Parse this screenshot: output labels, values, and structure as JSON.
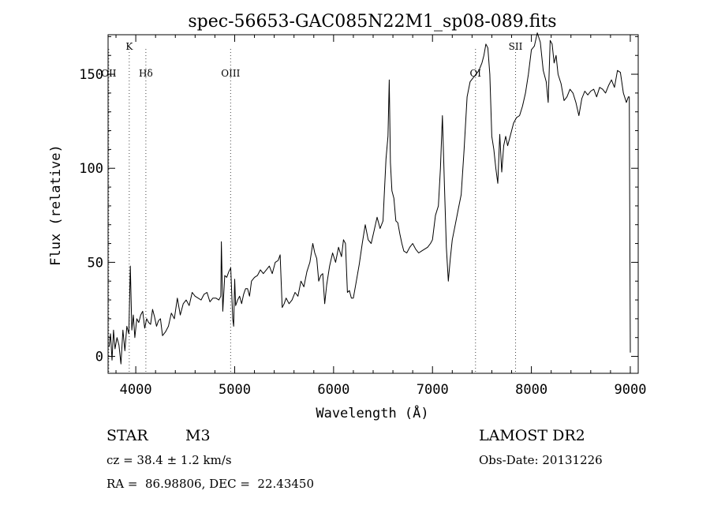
{
  "chart_data": {
    "type": "line",
    "title": "spec-56653-GAC085N22M1_sp08-089.fits",
    "xlabel": "Wavelength (Å)",
    "ylabel": "Flux (relative)",
    "xlim": [
      3720,
      9080
    ],
    "ylim": [
      -9,
      171
    ],
    "xticks": [
      4000,
      5000,
      6000,
      7000,
      8000,
      9000
    ],
    "yticks": [
      0,
      50,
      100,
      150
    ],
    "grid": false,
    "lines": [
      {
        "label": "K",
        "x": 3934,
        "label_row": "upper"
      },
      {
        "label": "OII",
        "x": 3727,
        "label_row": "lower"
      },
      {
        "label": "Hδ",
        "x": 4102,
        "label_row": "lower"
      },
      {
        "label": "OIII",
        "x": 4959,
        "label_row": "lower"
      },
      {
        "label": "OI",
        "x": 7435,
        "label_row": "lower"
      },
      {
        "label": "SII",
        "x": 7840,
        "label_row": "upper"
      }
    ],
    "series": [
      {
        "x": [
          3730,
          3745,
          3760,
          3775,
          3790,
          3810,
          3830,
          3850,
          3870,
          3890,
          3910,
          3930,
          3945,
          3960,
          3975,
          3990,
          4010,
          4030,
          4050,
          4070,
          4090,
          4110,
          4130,
          4150,
          4170,
          4190,
          4210,
          4230,
          4250,
          4270,
          4300,
          4330,
          4360,
          4390,
          4420,
          4450,
          4480,
          4510,
          4540,
          4570,
          4600,
          4630,
          4660,
          4690,
          4720,
          4750,
          4780,
          4810,
          4840,
          4860,
          4865,
          4880,
          4900,
          4920,
          4940,
          4960,
          4980,
          4990,
          5000,
          5010,
          5030,
          5050,
          5070,
          5090,
          5110,
          5130,
          5150,
          5170,
          5200,
          5230,
          5260,
          5290,
          5320,
          5350,
          5380,
          5410,
          5440,
          5460,
          5480,
          5500,
          5520,
          5550,
          5580,
          5610,
          5640,
          5670,
          5700,
          5730,
          5760,
          5790,
          5810,
          5830,
          5850,
          5870,
          5890,
          5910,
          5930,
          5960,
          5990,
          6020,
          6050,
          6080,
          6100,
          6120,
          6140,
          6160,
          6180,
          6200,
          6230,
          6260,
          6290,
          6320,
          6350,
          6380,
          6410,
          6440,
          6470,
          6500,
          6530,
          6550,
          6563,
          6575,
          6590,
          6610,
          6630,
          6650,
          6670,
          6690,
          6710,
          6740,
          6770,
          6800,
          6830,
          6860,
          6890,
          6920,
          6950,
          6980,
          7000,
          7030,
          7060,
          7080,
          7100,
          7120,
          7140,
          7160,
          7180,
          7200,
          7230,
          7260,
          7290,
          7320,
          7350,
          7380,
          7410,
          7440,
          7470,
          7500,
          7520,
          7540,
          7560,
          7580,
          7600,
          7620,
          7640,
          7660,
          7680,
          7700,
          7720,
          7740,
          7760,
          7790,
          7820,
          7850,
          7880,
          7910,
          7940,
          7970,
          8000,
          8030,
          8060,
          8090,
          8120,
          8150,
          8170,
          8190,
          8210,
          8230,
          8250,
          8270,
          8300,
          8330,
          8360,
          8390,
          8420,
          8450,
          8480,
          8510,
          8540,
          8570,
          8600,
          8630,
          8660,
          8690,
          8720,
          8750,
          8780,
          8810,
          8840,
          8870,
          8900,
          8930,
          8960,
          8980,
          8990,
          9000
        ],
        "y": [
          5,
          12,
          -2,
          14,
          4,
          10,
          6,
          -4,
          14,
          3,
          16,
          12,
          48,
          14,
          22,
          10,
          20,
          18,
          22,
          24,
          15,
          20,
          18,
          17,
          25,
          21,
          16,
          19,
          20,
          11,
          13,
          16,
          23,
          20,
          31,
          22,
          28,
          30,
          27,
          34,
          32,
          31,
          30,
          33,
          34,
          29,
          31,
          31,
          30,
          32,
          61,
          24,
          43,
          42,
          45,
          47,
          20,
          16,
          41,
          27,
          30,
          32,
          28,
          33,
          36,
          36,
          32,
          40,
          42,
          43,
          46,
          44,
          46,
          48,
          44,
          50,
          51,
          54,
          26,
          28,
          31,
          28,
          30,
          34,
          32,
          40,
          37,
          45,
          50,
          60,
          55,
          52,
          40,
          43,
          44,
          28,
          38,
          48,
          55,
          50,
          58,
          53,
          62,
          60,
          34,
          35,
          31,
          31,
          40,
          49,
          60,
          70,
          62,
          60,
          67,
          74,
          68,
          72,
          105,
          117,
          147,
          103,
          88,
          84,
          72,
          71,
          65,
          60,
          56,
          55,
          58,
          60,
          57,
          55,
          56,
          57,
          58,
          60,
          62,
          75,
          80,
          100,
          128,
          92,
          58,
          40,
          52,
          62,
          70,
          78,
          86,
          110,
          138,
          146,
          148,
          150,
          152,
          156,
          160,
          166,
          164,
          150,
          117,
          110,
          100,
          92,
          118,
          98,
          112,
          117,
          112,
          118,
          124,
          127,
          128,
          133,
          140,
          150,
          163,
          165,
          172,
          167,
          152,
          146,
          135,
          168,
          166,
          156,
          160,
          150,
          145,
          136,
          138,
          142,
          140,
          135,
          128,
          137,
          141,
          139,
          141,
          142,
          138,
          143,
          142,
          140,
          144,
          147,
          143,
          152,
          151,
          140,
          135,
          138,
          138,
          2
        ]
      }
    ]
  },
  "footer": {
    "object_class": "STAR",
    "subclass": "M3",
    "survey": "LAMOST DR2",
    "cz": "cz = 38.4 ± 1.2 km/s",
    "obs_date": "Obs-Date: 20131226",
    "coords": "RA =  86.98806, DEC =  22.43450"
  }
}
